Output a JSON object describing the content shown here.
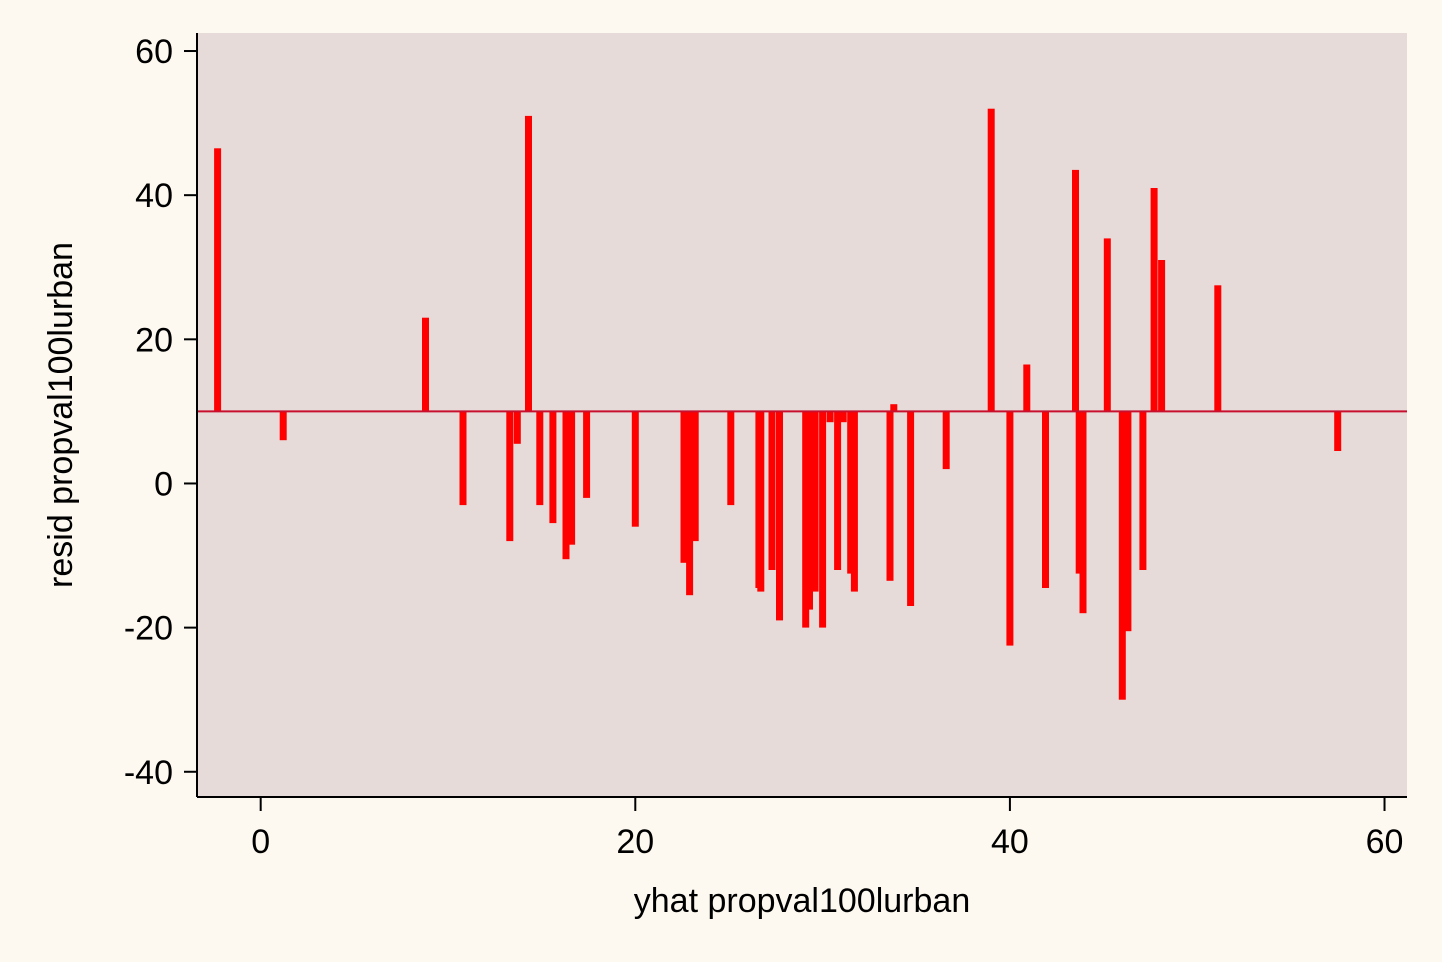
{
  "chart_data": {
    "type": "bar",
    "subtype": "spike-plot",
    "title": "",
    "xlabel": "yhat propval100lurban",
    "ylabel": "resid propval100lurban",
    "xlim": [
      -3.4,
      61.2
    ],
    "ylim": [
      -43.5,
      62.5
    ],
    "x_ticks": [
      0,
      20,
      40,
      60
    ],
    "y_ticks": [
      -40,
      -20,
      0,
      20,
      40,
      60
    ],
    "baseline": 10,
    "grid": false,
    "legend": "none",
    "colors": {
      "page_background": "#fdf9f0",
      "plot_background": "#e6dbd9",
      "spikes": "#ff0000",
      "baseline_line": "#c8102e",
      "axis": "#000000"
    },
    "series": [
      {
        "x": [
          -2.3,
          1.2,
          8.8,
          10.8,
          13.3,
          13.7,
          14.3,
          14.9,
          15.6,
          16.3,
          16.6,
          17.4,
          20.0,
          22.6,
          22.9,
          23.2,
          25.1,
          26.6,
          26.7,
          27.3,
          27.7,
          29.1,
          29.3,
          29.6,
          30.0,
          30.4,
          30.8,
          31.1,
          31.5,
          31.7,
          33.6,
          33.8,
          34.7,
          36.6,
          39.0,
          40.0,
          40.9,
          41.9,
          43.5,
          43.7,
          43.9,
          45.2,
          46.0,
          46.3,
          47.1,
          47.7,
          48.1,
          51.1,
          57.5
        ],
        "values": [
          46.5,
          6.0,
          23.0,
          -3.0,
          -8.0,
          5.5,
          51.0,
          -3.0,
          -5.5,
          -10.5,
          -8.5,
          -2.0,
          -6.0,
          -11.0,
          -15.5,
          -8.0,
          -3.0,
          -14.5,
          -15.0,
          -12.0,
          -19.0,
          -20.0,
          -17.5,
          -15.0,
          -20.0,
          8.5,
          -12.0,
          8.5,
          -12.5,
          -15.0,
          -13.5,
          11.0,
          -17.0,
          2.0,
          52.0,
          -22.5,
          16.5,
          -14.5,
          43.5,
          -12.5,
          -18.0,
          34.0,
          -30.0,
          -20.5,
          -12.0,
          41.0,
          31.0,
          27.5,
          4.5
        ]
      }
    ]
  }
}
